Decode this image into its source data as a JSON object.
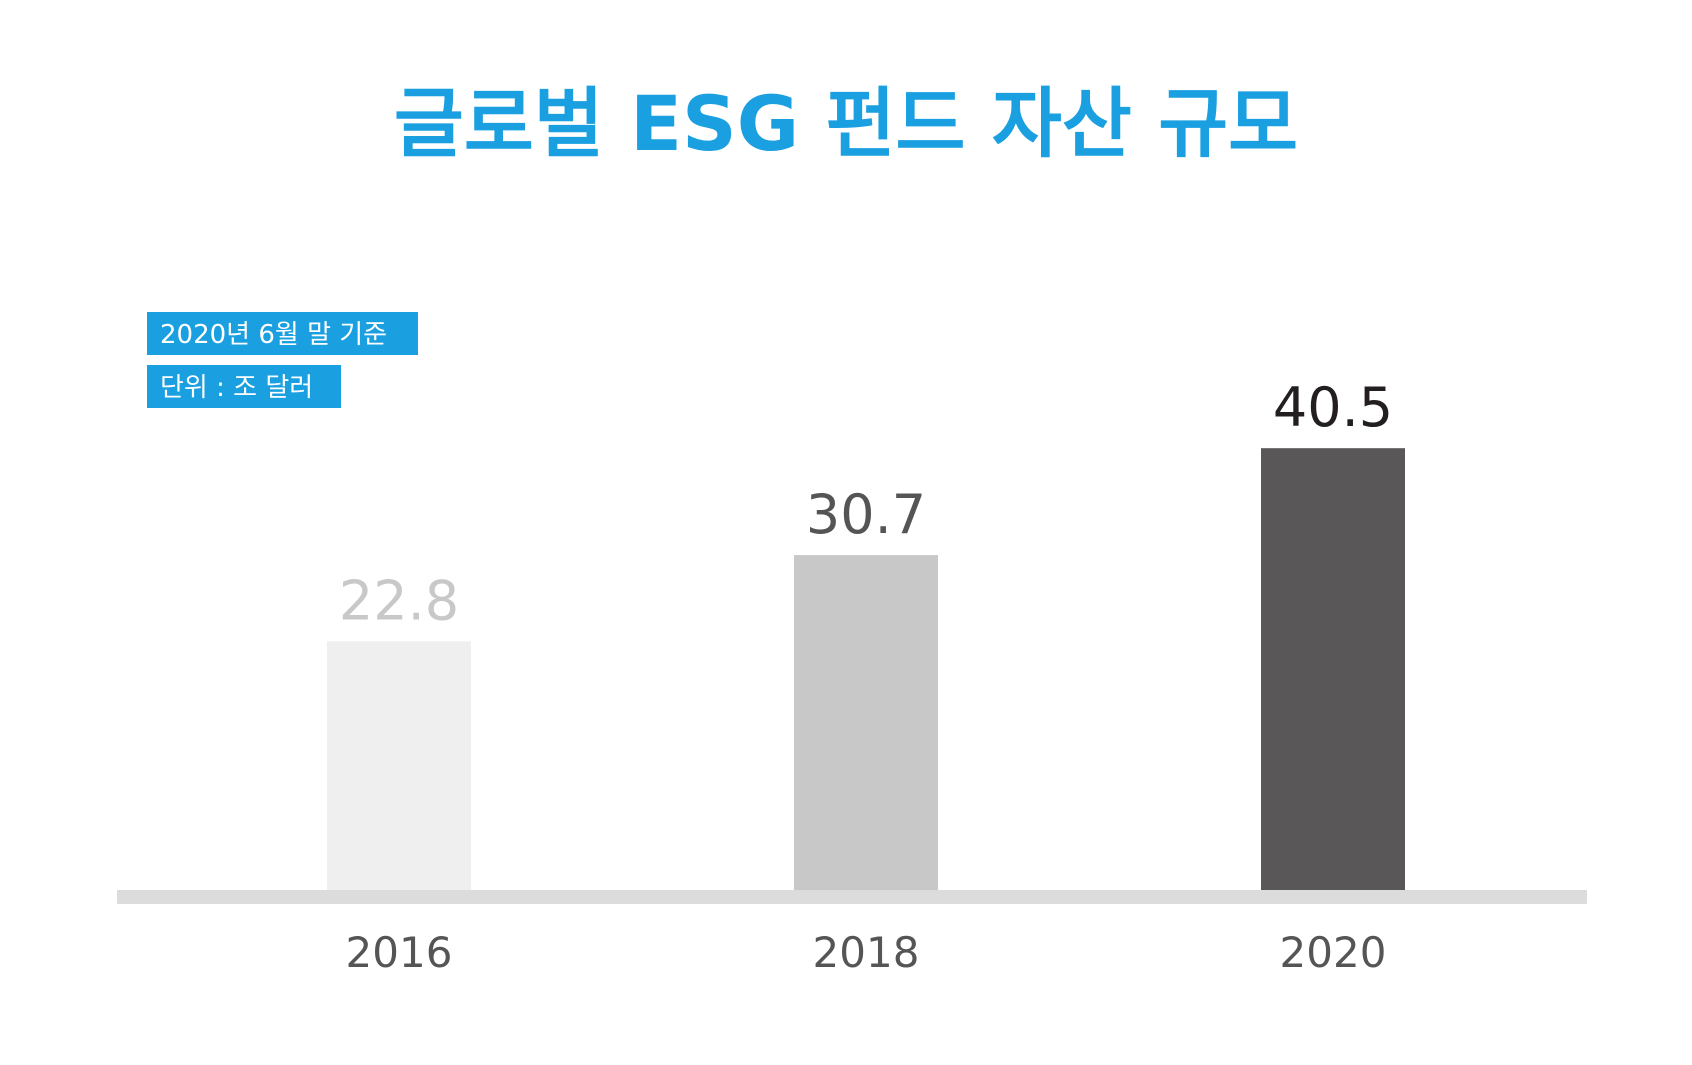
{
  "chart_data": {
    "type": "bar",
    "title": "글로벌 ESG 펀드 자산 규모",
    "notes": [
      "2020년 6월 말 기준",
      "단위 : 조 달러"
    ],
    "categories": [
      "2016",
      "2018",
      "2020"
    ],
    "values": [
      22.8,
      30.7,
      40.5
    ],
    "value_labels": [
      "22.8",
      "30.7",
      "40.5"
    ],
    "ylim": [
      0,
      44
    ],
    "grid": false,
    "legend": "none",
    "bar_colors": [
      "#EFEFEF",
      "#C8C8C8",
      "#595758"
    ],
    "value_label_colors": [
      "#C8C8C8",
      "#555555",
      "#231F20"
    ]
  },
  "colors": {
    "title": "#1A9FE0",
    "badge": "#1A9FE0",
    "badge_text": "#FFFFFF",
    "baseline": "#DCDCDC",
    "tick_label": "#555555"
  }
}
